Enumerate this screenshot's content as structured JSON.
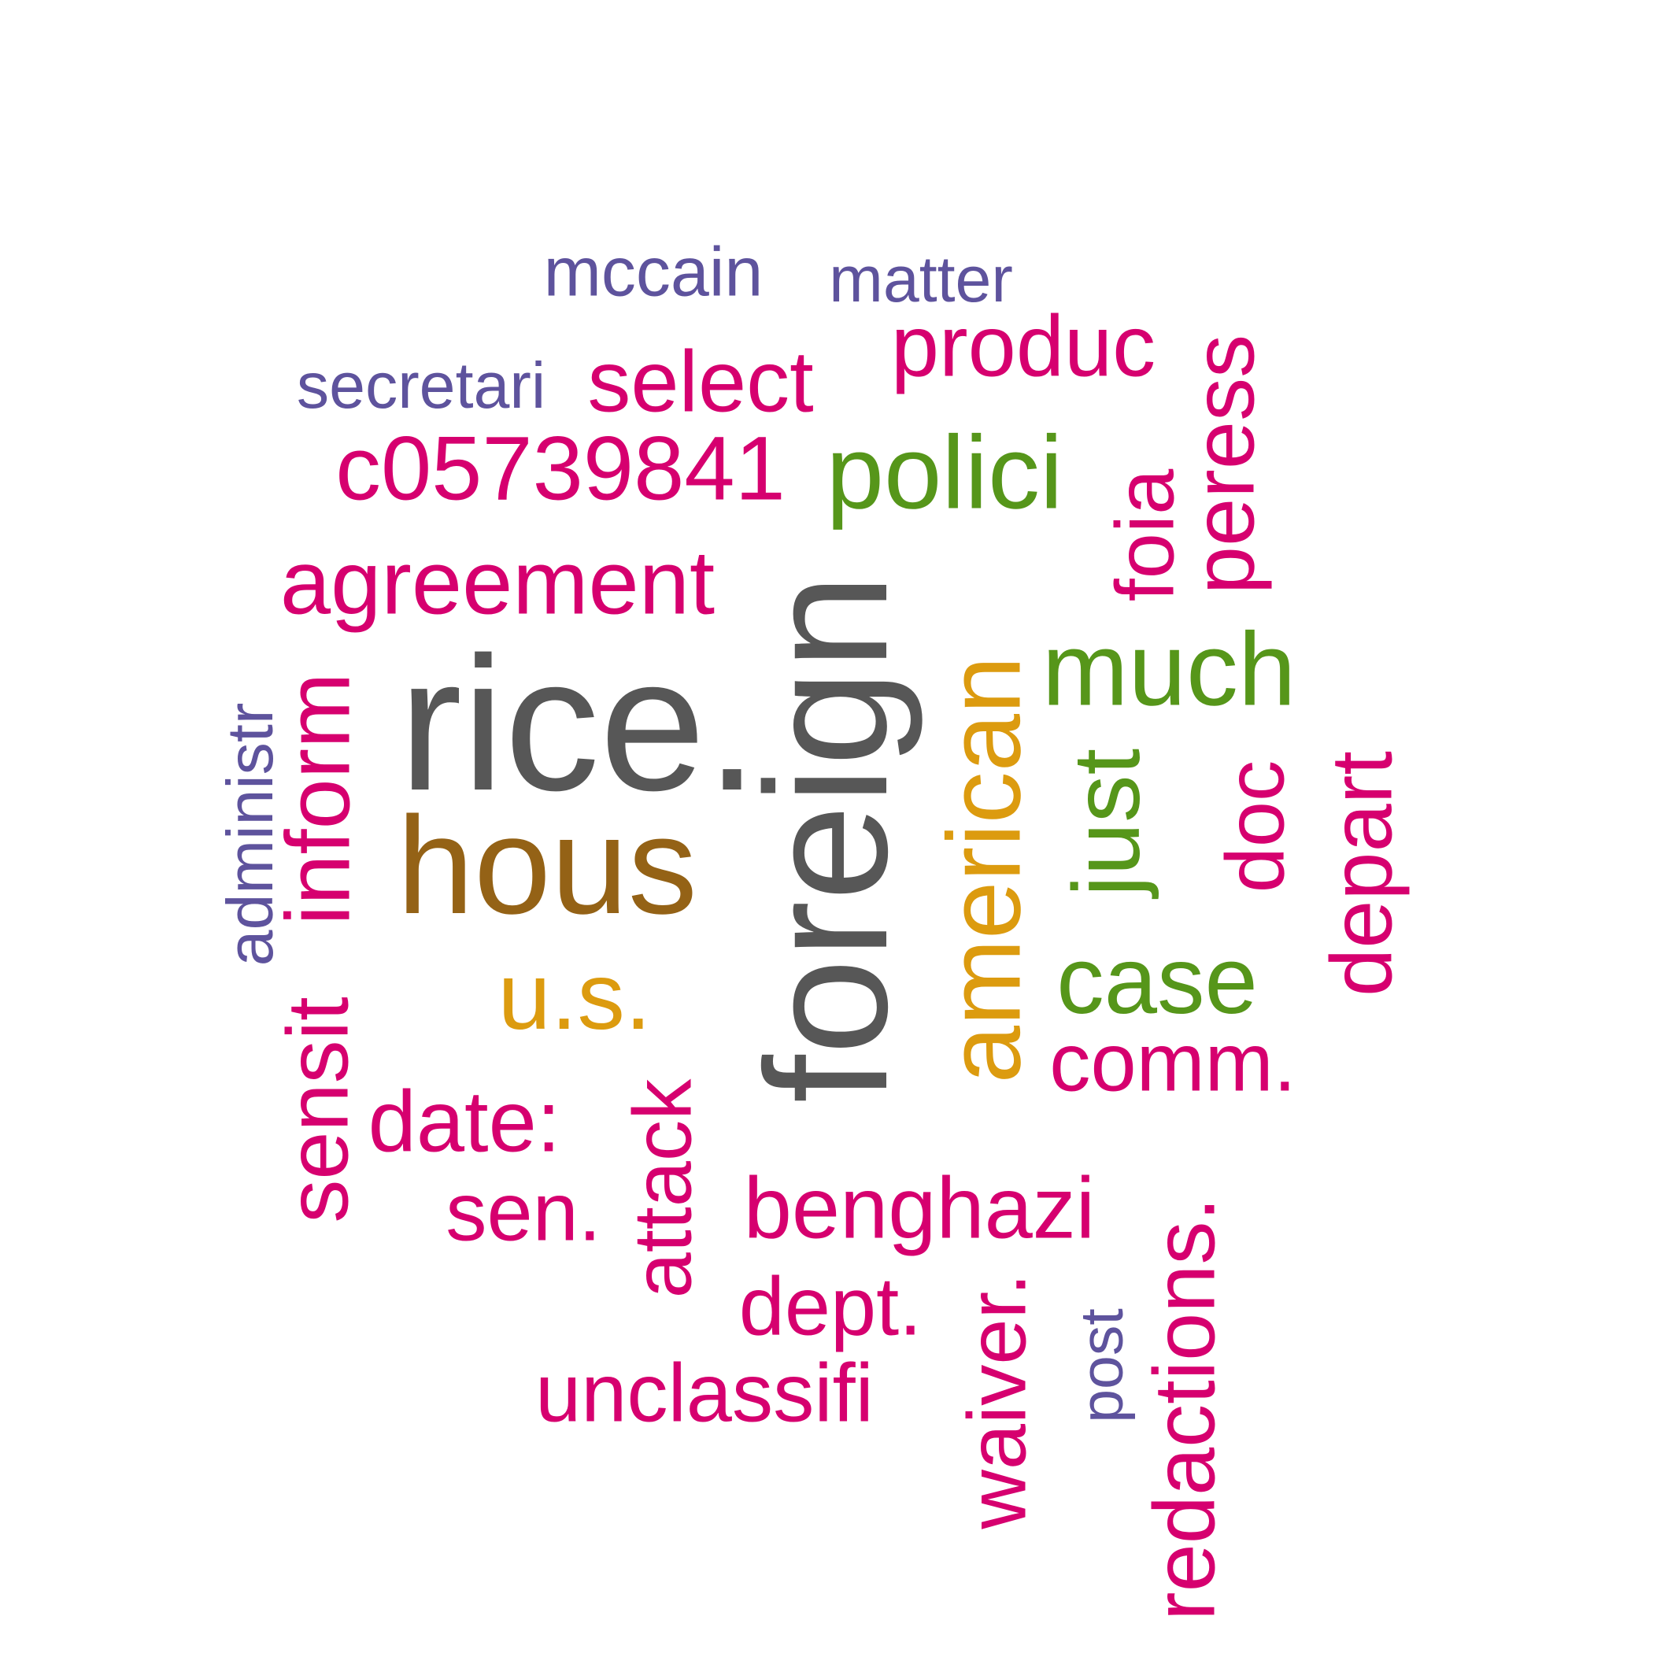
{
  "palette": {
    "magenta": "#d6006f",
    "purple": "#5e539d",
    "green": "#56961a",
    "gold": "#dc9b0f",
    "brown": "#946216",
    "dark_gray": "#575757"
  },
  "words": [
    {
      "id": "rice",
      "text": "rice.",
      "color": "#575757"
    },
    {
      "id": "foreign",
      "text": "foreign",
      "color": "#575757"
    },
    {
      "id": "hous",
      "text": "hous",
      "color": "#946216"
    },
    {
      "id": "american",
      "text": "american",
      "color": "#dc9b0f"
    },
    {
      "id": "us",
      "text": "u.s.",
      "color": "#dc9b0f"
    },
    {
      "id": "polici",
      "text": "polici",
      "color": "#56961a"
    },
    {
      "id": "much",
      "text": "much",
      "color": "#56961a"
    },
    {
      "id": "just",
      "text": "just",
      "color": "#56961a"
    },
    {
      "id": "case",
      "text": "case",
      "color": "#56961a"
    },
    {
      "id": "mccain",
      "text": "mccain",
      "color": "#5e539d"
    },
    {
      "id": "matter",
      "text": "matter",
      "color": "#5e539d"
    },
    {
      "id": "secretari",
      "text": "secretari",
      "color": "#5e539d"
    },
    {
      "id": "administr",
      "text": "administr",
      "color": "#5e539d"
    },
    {
      "id": "post",
      "text": "post",
      "color": "#5e539d"
    },
    {
      "id": "select",
      "text": "select",
      "color": "#d6006f"
    },
    {
      "id": "produc",
      "text": "produc",
      "color": "#d6006f"
    },
    {
      "id": "peress",
      "text": "peress",
      "color": "#d6006f"
    },
    {
      "id": "c05739841",
      "text": "c05739841",
      "color": "#d6006f"
    },
    {
      "id": "foia",
      "text": "foia",
      "color": "#d6006f"
    },
    {
      "id": "agreement",
      "text": "agreement",
      "color": "#d6006f"
    },
    {
      "id": "inform",
      "text": "inform",
      "color": "#d6006f"
    },
    {
      "id": "sensit",
      "text": "sensit",
      "color": "#d6006f"
    },
    {
      "id": "doc",
      "text": "doc",
      "color": "#d6006f"
    },
    {
      "id": "depart",
      "text": "depart",
      "color": "#d6006f"
    },
    {
      "id": "comm",
      "text": "comm.",
      "color": "#d6006f"
    },
    {
      "id": "date",
      "text": "date:",
      "color": "#d6006f"
    },
    {
      "id": "attack",
      "text": "attack",
      "color": "#d6006f"
    },
    {
      "id": "sen",
      "text": "sen.",
      "color": "#d6006f"
    },
    {
      "id": "benghazi",
      "text": "benghazi",
      "color": "#d6006f"
    },
    {
      "id": "redactions",
      "text": "redactions.",
      "color": "#d6006f"
    },
    {
      "id": "dept",
      "text": "dept.",
      "color": "#d6006f"
    },
    {
      "id": "waiver",
      "text": "waiver.",
      "color": "#d6006f"
    },
    {
      "id": "unclassifi",
      "text": "unclassifi",
      "color": "#d6006f"
    }
  ]
}
